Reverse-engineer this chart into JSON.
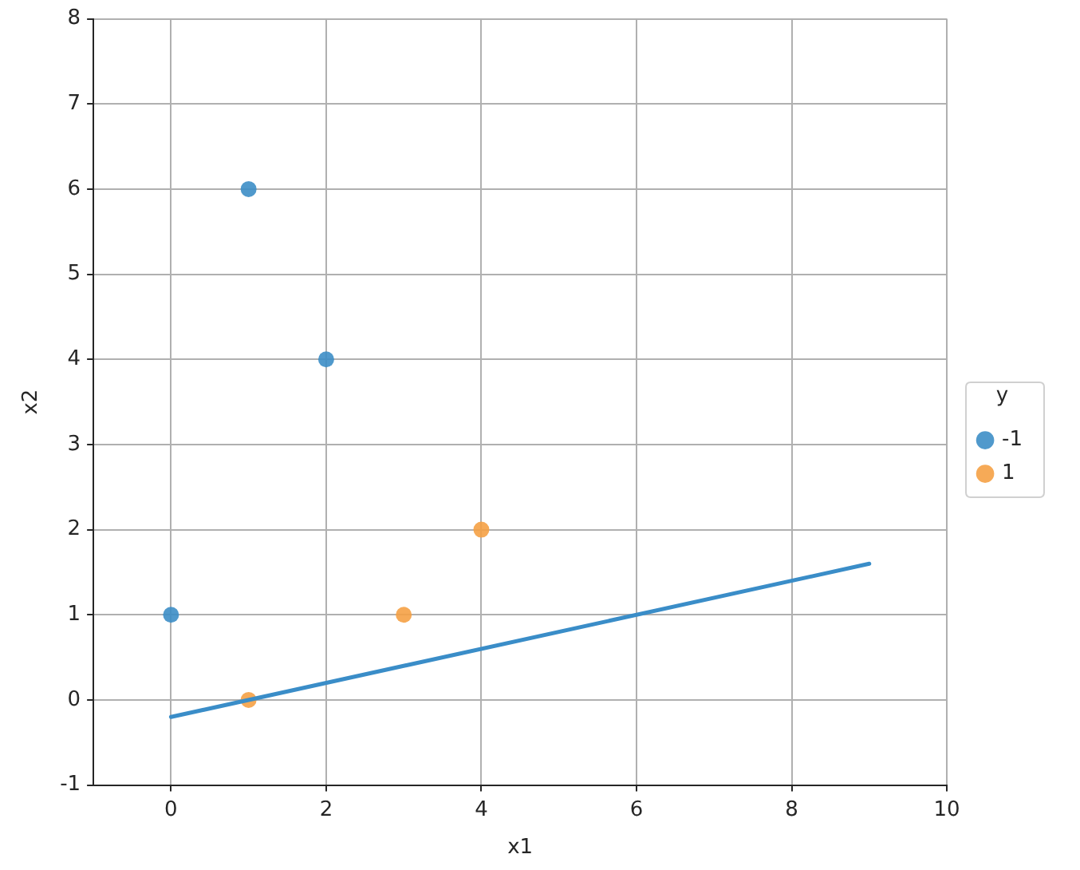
{
  "chart_data": {
    "type": "scatter",
    "xlabel": "x1",
    "ylabel": "x2",
    "legend_title": "y",
    "legend": "right",
    "grid": true,
    "marker": "circle",
    "xlim": [
      -1,
      10
    ],
    "ylim": [
      -1,
      8
    ],
    "xticks": [
      0,
      2,
      4,
      6,
      8,
      10
    ],
    "yticks": [
      -1,
      0,
      1,
      2,
      3,
      4,
      5,
      6,
      7,
      8
    ],
    "series": [
      {
        "name": "-1",
        "color": "#3d8ec6",
        "x": [
          0,
          1,
          2
        ],
        "values": [
          1,
          6,
          4
        ]
      },
      {
        "name": "1",
        "color": "#f5a145",
        "x": [
          1,
          3,
          4
        ],
        "values": [
          0,
          1,
          2
        ]
      },
      {
        "type": "line",
        "color": "#3a8dc8",
        "marker": "none",
        "line_style": "solid",
        "x": [
          0,
          9
        ],
        "values": [
          -0.2,
          1.6
        ]
      }
    ]
  }
}
